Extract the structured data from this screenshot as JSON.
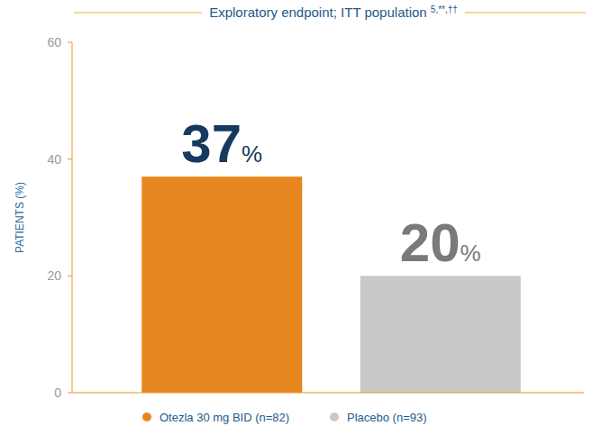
{
  "chart_data": {
    "type": "bar",
    "title": "Exploratory endpoint; ITT population 5,**,††",
    "y_label": "PATIENTS (%)",
    "categories": [
      "Otezla 30 mg BID (n=82)",
      "Placebo (n=93)"
    ],
    "values": [
      37,
      20
    ],
    "value_labels": [
      "37%",
      "20%"
    ],
    "colors": [
      "#e8861f",
      "#c9c9c9"
    ],
    "ylim": [
      0,
      60
    ],
    "yticks": [
      0,
      20,
      40,
      60
    ],
    "data_labels": true,
    "tick_labels": "y",
    "legend": "bottom",
    "grid": false
  }
}
